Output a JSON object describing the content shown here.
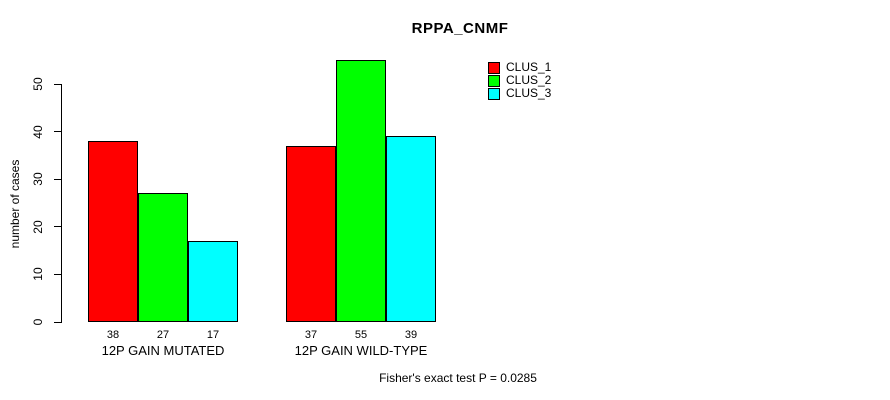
{
  "chart_data": {
    "type": "bar",
    "title": "RPPA_CNMF",
    "xlabel": "",
    "ylabel": "number of cases",
    "categories": [
      "12P GAIN MUTATED",
      "12P GAIN WILD-TYPE"
    ],
    "series": [
      {
        "name": "CLUS_1",
        "color": "#ff0000",
        "values": [
          38,
          37
        ]
      },
      {
        "name": "CLUS_2",
        "color": "#00ff00",
        "values": [
          27,
          55
        ]
      },
      {
        "name": "CLUS_3",
        "color": "#00ffff",
        "values": [
          17,
          39
        ]
      }
    ],
    "yticks": [
      0,
      10,
      20,
      30,
      40,
      50
    ],
    "ylim": [
      0,
      58
    ],
    "grid": false,
    "bar_value_labels": true,
    "legend_position": "top-right",
    "annotation": "Fisher's exact test P = 0.0285"
  }
}
